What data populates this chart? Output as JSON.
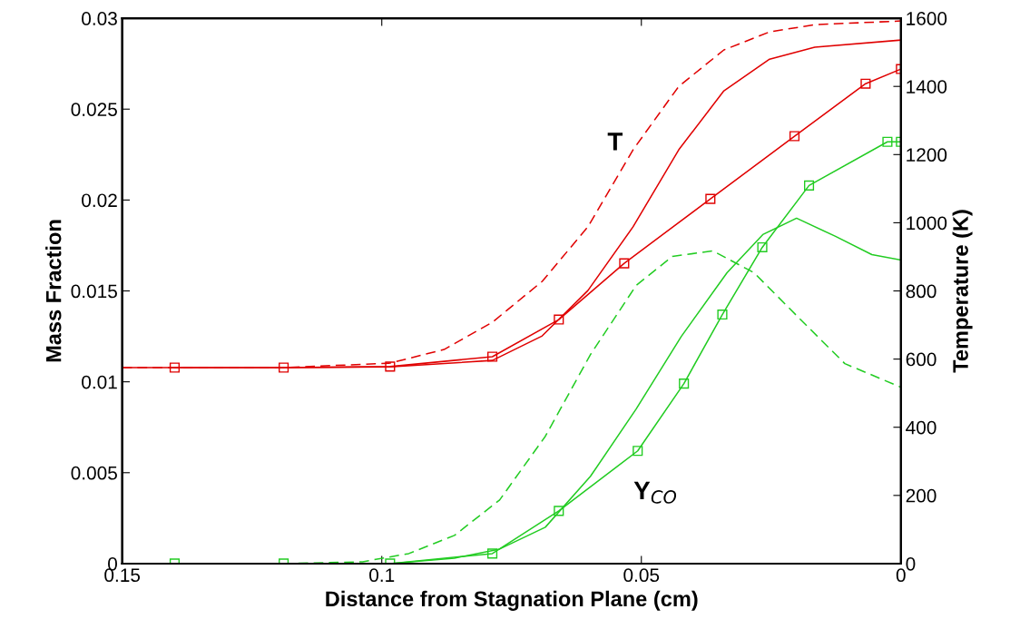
{
  "chart_data": {
    "type": "line",
    "xlabel": "Distance from Stagnation Plane (cm)",
    "ylabel": "Mass Fraction",
    "y2label": "Temperature (K)",
    "xlim": [
      0.15,
      0
    ],
    "xticks": [
      0.15,
      0.1,
      0.05,
      0
    ],
    "ylim": [
      0,
      0.03
    ],
    "yticks": [
      0,
      0.005,
      0.01,
      0.015,
      0.02,
      0.025,
      0.03
    ],
    "y2lim": [
      0,
      1600
    ],
    "y2ticks": [
      0,
      200,
      400,
      600,
      800,
      1000,
      1200,
      1400,
      1600
    ],
    "grid": false,
    "legend": false,
    "series": [
      {
        "axis": "y2",
        "color": "#e00000",
        "line_style": "dashed",
        "marker": "none",
        "x": [
          0.15,
          0.119,
          0.0985,
          0.088,
          0.0787,
          0.0691,
          0.0603,
          0.0516,
          0.0428,
          0.0341,
          0.0253,
          0.0166,
          0
        ],
        "values": [
          575,
          575,
          588,
          628,
          708,
          828,
          988,
          1214,
          1400,
          1507,
          1560,
          1581,
          1592
        ]
      },
      {
        "axis": "y2",
        "color": "#e00000",
        "line_style": "solid",
        "marker": "none",
        "x": [
          0.15,
          0.119,
          0.0985,
          0.0787,
          0.0691,
          0.0603,
          0.0516,
          0.0428,
          0.0341,
          0.0253,
          0.0166,
          0
        ],
        "values": [
          575,
          575,
          577,
          596,
          668,
          801,
          988,
          1214,
          1387,
          1480,
          1515,
          1536
        ]
      },
      {
        "axis": "y2",
        "color": "#e00000",
        "line_style": "solid",
        "marker": "square",
        "x": [
          0.1399,
          0.1189,
          0.0984,
          0.0787,
          0.0659,
          0.0533,
          0.0367,
          0.0205,
          0.0068,
          0
        ],
        "values": [
          575,
          575,
          578,
          607,
          716,
          881,
          1070,
          1254,
          1408,
          1451
        ]
      },
      {
        "color": "#22cc22",
        "line_style": "dashed",
        "marker": "none",
        "x": [
          0.119,
          0.1037,
          0.0948,
          0.086,
          0.0773,
          0.0685,
          0.0598,
          0.051,
          0.044,
          0.0362,
          0.0283,
          0.0196,
          0.0108,
          0
        ],
        "values": [
          0,
          0.0001,
          0.00055,
          0.00155,
          0.0035,
          0.007,
          0.0115,
          0.0153,
          0.0169,
          0.0172,
          0.016,
          0.0135,
          0.011,
          0.0097
        ]
      },
      {
        "color": "#22cc22",
        "line_style": "solid",
        "marker": "none",
        "x": [
          0.0984,
          0.086,
          0.0773,
          0.0685,
          0.0598,
          0.051,
          0.0423,
          0.0335,
          0.0266,
          0.0201,
          0.0126,
          0.0056,
          0
        ],
        "values": [
          0,
          0.0003,
          0.0008,
          0.002,
          0.0048,
          0.0085,
          0.0125,
          0.016,
          0.0181,
          0.019,
          0.018,
          0.017,
          0.0167
        ]
      },
      {
        "color": "#22cc22",
        "line_style": "solid",
        "marker": "square",
        "x": [
          0.1399,
          0.1189,
          0.0984,
          0.0787,
          0.0659,
          0.0507,
          0.0418,
          0.0344,
          0.0267,
          0.0177,
          0.0026,
          0
        ],
        "values": [
          0,
          0,
          0,
          0.00055,
          0.0029,
          0.0062,
          0.0099,
          0.0137,
          0.0174,
          0.0208,
          0.0232,
          0.0232
        ]
      }
    ],
    "annotations": [
      "T",
      "Y$_{CO}$"
    ]
  }
}
